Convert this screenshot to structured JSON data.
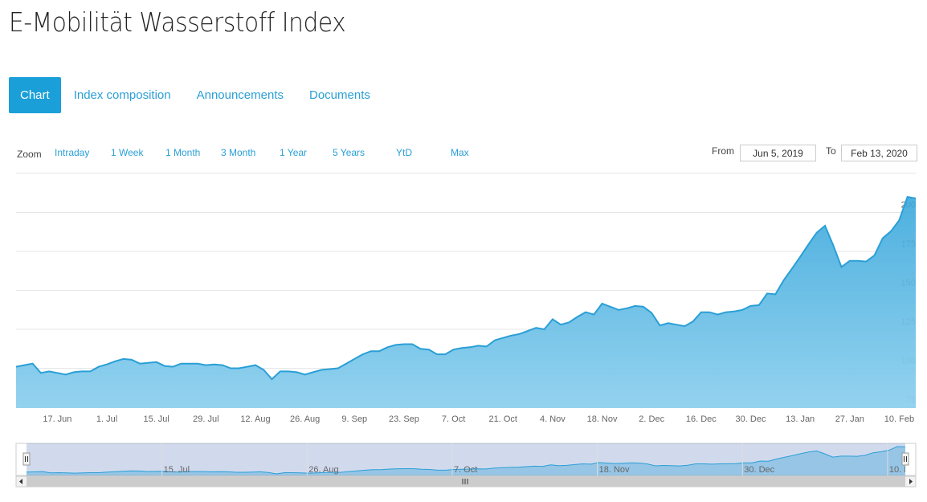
{
  "header": {
    "title": "E-Mobilität Wasserstoff Index"
  },
  "tabs": [
    "Chart",
    "Index composition",
    "Announcements",
    "Documents"
  ],
  "zoom": {
    "label": "Zoom",
    "buttons": [
      "Intraday",
      "1 Week",
      "1 Month",
      "3 Month",
      "1 Year",
      "5 Years",
      "YtD",
      "Max"
    ]
  },
  "range": {
    "from_label": "From",
    "from": "Jun 5, 2019",
    "to_label": "To",
    "to": "Feb 13, 2020"
  },
  "chart_data": {
    "type": "area",
    "color": "#2a9fd6",
    "categories": [
      null,
      null,
      null,
      null,
      null,
      "17. Jun",
      null,
      null,
      null,
      null,
      null,
      "1. Jul",
      null,
      null,
      null,
      null,
      null,
      "15. Jul",
      null,
      null,
      null,
      null,
      null,
      "29. Jul",
      null,
      null,
      null,
      null,
      null,
      "12. Aug",
      null,
      null,
      null,
      null,
      null,
      "26. Aug",
      null,
      null,
      null,
      null,
      null,
      "9. Sep",
      null,
      null,
      null,
      null,
      null,
      "23. Sep",
      null,
      null,
      null,
      null,
      null,
      "7. Oct",
      null,
      null,
      null,
      null,
      null,
      "21. Oct",
      null,
      null,
      null,
      null,
      null,
      "4. Nov",
      null,
      null,
      null,
      null,
      null,
      "18. Nov",
      null,
      null,
      null,
      null,
      null,
      "2. Dec",
      null,
      null,
      null,
      null,
      null,
      "16. Dec",
      null,
      null,
      null,
      null,
      null,
      "30. Dec",
      null,
      null,
      null,
      null,
      null,
      "13. Jan",
      null,
      null,
      null,
      null,
      null,
      "27. Jan",
      null,
      null,
      null,
      null,
      null,
      "10. Feb",
      null,
      null
    ],
    "values": [
      101,
      102,
      103,
      97,
      98,
      97,
      96,
      97.5,
      98,
      98,
      101,
      102.5,
      104.5,
      106,
      105.5,
      103,
      103.5,
      104,
      101.5,
      101,
      103,
      103,
      103,
      102,
      102.5,
      102,
      100,
      100,
      101,
      102,
      99,
      93,
      98,
      98,
      97.5,
      96,
      97.5,
      99,
      99.5,
      100,
      103,
      106,
      109,
      111,
      111,
      113.5,
      115,
      115.5,
      115.5,
      112.5,
      112,
      109,
      109,
      112,
      113,
      113.5,
      114.5,
      114,
      118,
      119.5,
      121,
      122,
      124,
      126,
      125,
      131.5,
      128,
      129.5,
      133,
      136,
      134.5,
      141.5,
      139.5,
      137.5,
      138.5,
      140,
      139.5,
      135.5,
      127.5,
      129,
      128,
      127,
      130,
      136,
      136,
      134.5,
      136,
      136.5,
      137.5,
      140,
      140.5,
      148,
      147.5,
      156.5,
      164,
      171.5,
      179.5,
      187,
      191.5,
      179,
      165,
      169,
      169,
      168.5,
      172.5,
      183.5,
      188,
      195,
      210,
      209
    ],
    "ylim": [
      74.5,
      225
    ],
    "yticks": [
      75,
      100,
      125,
      150,
      175,
      200
    ],
    "grid": true
  }
}
